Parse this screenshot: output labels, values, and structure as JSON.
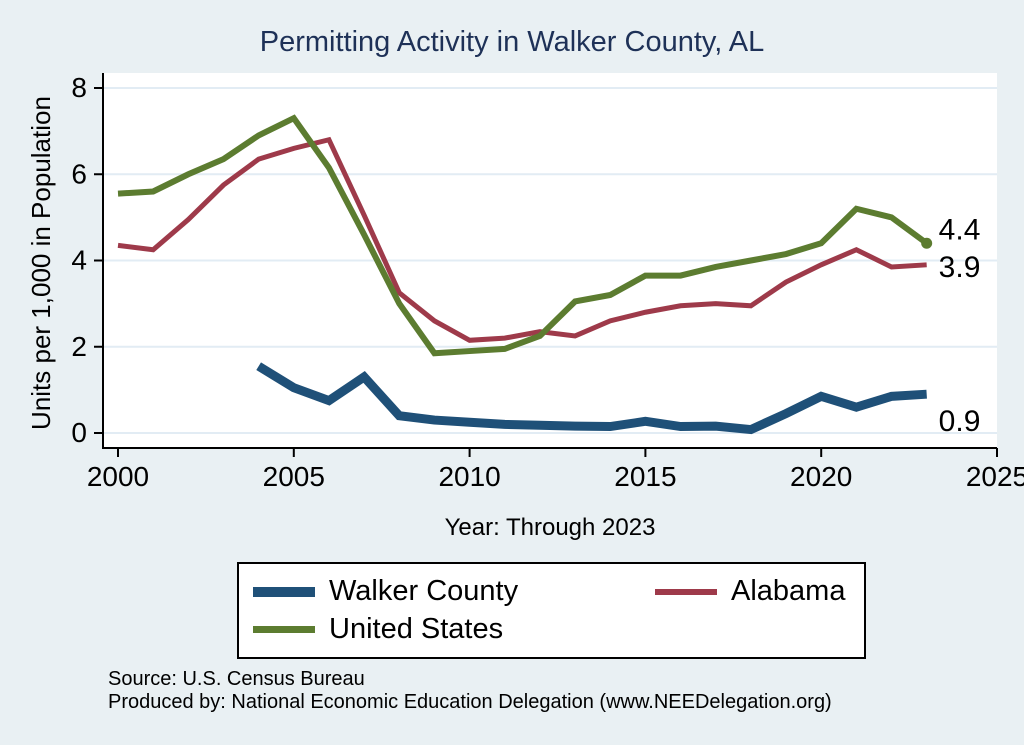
{
  "colors": {
    "background": "#e9f0f3",
    "plot_bg": "#ffffff",
    "grid": "#e2ecf4",
    "axis": "#000000",
    "title": "#1e3157"
  },
  "chart_data": {
    "type": "line",
    "title": "Permitting Activity in Walker County, AL",
    "xlabel": "Year: Through 2023",
    "ylabel": "Units per 1,000 in Population",
    "xlim": [
      2000,
      2025
    ],
    "ylim": [
      0,
      8
    ],
    "x_ticks": [
      2000,
      2005,
      2010,
      2015,
      2020,
      2025
    ],
    "y_ticks": [
      0,
      2,
      4,
      6,
      8
    ],
    "grid": true,
    "legend_position": "bottom",
    "series": [
      {
        "name": "Walker County",
        "color": "#1f5078",
        "width": 9,
        "x": [
          2004,
          2005,
          2006,
          2007,
          2008,
          2009,
          2010,
          2011,
          2012,
          2013,
          2014,
          2015,
          2016,
          2017,
          2018,
          2019,
          2020,
          2021,
          2022,
          2023
        ],
        "values": [
          1.55,
          1.05,
          0.75,
          1.3,
          0.4,
          0.3,
          0.25,
          0.2,
          0.18,
          0.16,
          0.15,
          0.27,
          0.15,
          0.16,
          0.08,
          0.45,
          0.85,
          0.6,
          0.85,
          0.9
        ],
        "end_label": "0.9",
        "end_label_dy": 27,
        "end_dot": false
      },
      {
        "name": "Alabama",
        "color": "#9e3a4a",
        "width": 5,
        "x": [
          2000,
          2001,
          2002,
          2003,
          2004,
          2005,
          2006,
          2007,
          2008,
          2009,
          2010,
          2011,
          2012,
          2013,
          2014,
          2015,
          2016,
          2017,
          2018,
          2019,
          2020,
          2021,
          2022,
          2023
        ],
        "values": [
          4.35,
          4.25,
          4.95,
          5.75,
          6.35,
          6.6,
          6.8,
          5.05,
          3.25,
          2.6,
          2.15,
          2.2,
          2.35,
          2.25,
          2.6,
          2.8,
          2.95,
          3.0,
          2.95,
          3.5,
          3.9,
          4.25,
          3.85,
          3.9
        ],
        "end_label": "3.9",
        "end_label_dy": 2,
        "end_dot": false
      },
      {
        "name": "United States",
        "color": "#5c7c30",
        "width": 6,
        "x": [
          2000,
          2001,
          2002,
          2003,
          2004,
          2005,
          2006,
          2007,
          2008,
          2009,
          2010,
          2011,
          2012,
          2013,
          2014,
          2015,
          2016,
          2017,
          2018,
          2019,
          2020,
          2021,
          2022,
          2023
        ],
        "values": [
          5.55,
          5.6,
          6.0,
          6.35,
          6.9,
          7.3,
          6.15,
          4.6,
          3.0,
          1.85,
          1.9,
          1.95,
          2.25,
          3.05,
          3.2,
          3.65,
          3.65,
          3.85,
          4.0,
          4.15,
          4.4,
          5.2,
          5.0,
          4.4
        ],
        "end_label": "4.4",
        "end_label_dy": -14,
        "end_dot": true
      }
    ]
  },
  "footer": {
    "source": "Source: U.S. Census Bureau",
    "produced_by": "Produced by: National Economic Education Delegation (www.NEEDelegation.org)"
  }
}
